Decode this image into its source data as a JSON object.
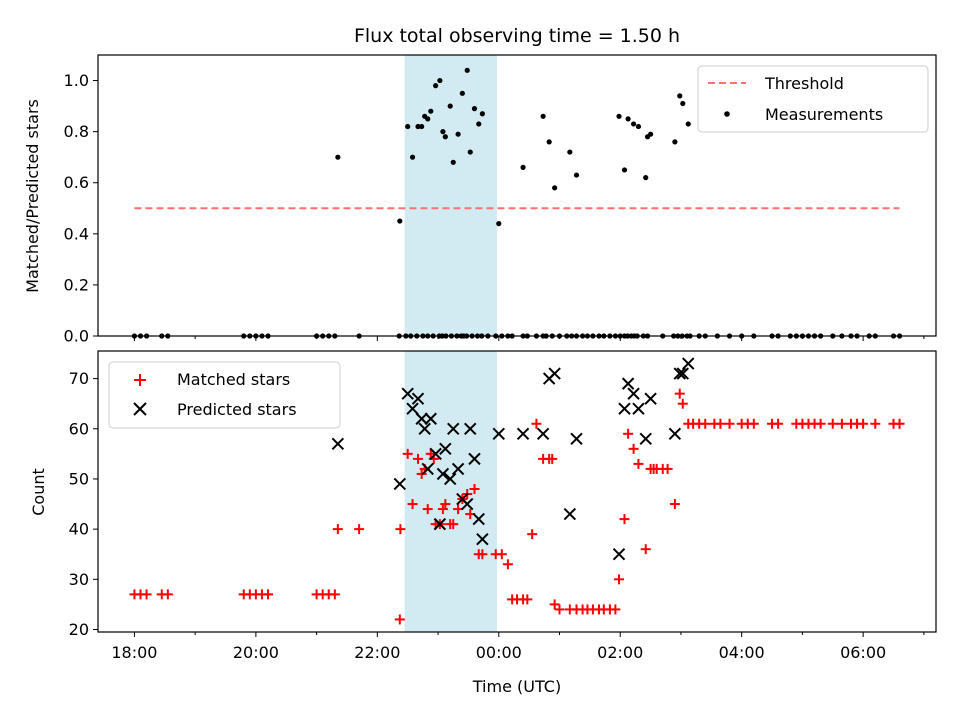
{
  "chart_data": [
    {
      "type": "scatter",
      "title": "Flux total observing time = 1.50 h",
      "ylabel": "Matched/Predicted stars",
      "ylim": [
        0,
        1.1
      ],
      "yticks": [
        0.0,
        0.2,
        0.4,
        0.6,
        0.8,
        1.0
      ],
      "yticklabels": [
        "0.0",
        "0.2",
        "0.4",
        "0.6",
        "0.8",
        "1.0"
      ],
      "highlight_span": {
        "start": 22.45,
        "end": 23.97,
        "color": "#add8e6"
      },
      "legend_position": "top-right",
      "threshold": {
        "name": "Threshold",
        "value": 0.5,
        "x_start": 18.0,
        "x_end": 30.6,
        "color": "#ff7070"
      },
      "series": [
        {
          "name": "Measurements",
          "color": "#000000",
          "x": [
            18.0,
            18.1,
            18.2,
            18.45,
            18.55,
            19.8,
            19.9,
            20.0,
            20.1,
            20.2,
            21.0,
            21.1,
            21.2,
            21.3,
            21.7,
            22.36,
            22.47,
            22.55,
            22.65,
            22.75,
            22.83,
            22.92,
            23.02,
            23.07,
            23.13,
            23.22,
            23.31,
            23.38,
            23.42,
            23.47,
            23.56,
            23.65,
            23.72,
            23.82,
            23.95,
            24.05,
            24.15,
            24.22,
            24.4,
            24.47,
            24.62,
            24.73,
            24.78,
            24.88,
            25.0,
            25.12,
            25.2,
            25.28,
            25.38,
            25.46,
            25.55,
            25.65,
            25.73,
            25.83,
            25.92,
            26.0,
            26.07,
            26.12,
            26.18,
            26.23,
            26.28,
            26.38,
            26.45,
            26.7,
            26.88,
            26.95,
            27.02,
            27.1,
            27.15,
            27.3,
            27.4,
            27.6,
            27.8,
            28.0,
            28.2,
            28.5,
            28.6,
            28.8,
            28.9,
            29.0,
            29.1,
            29.2,
            29.3,
            29.5,
            29.65,
            29.8,
            29.9,
            30.1,
            30.2,
            30.5,
            30.6,
            21.35,
            22.37,
            22.5,
            22.58,
            22.67,
            22.73,
            22.78,
            22.83,
            22.88,
            22.96,
            23.03,
            23.08,
            23.12,
            23.2,
            23.25,
            23.33,
            23.4,
            23.48,
            23.53,
            23.6,
            23.67,
            23.73,
            24.0,
            24.4,
            24.73,
            24.83,
            24.92,
            25.17,
            25.28,
            25.98,
            26.07,
            26.13,
            26.22,
            26.3,
            26.42,
            26.45,
            26.5,
            26.9,
            26.98,
            27.03,
            27.12
          ],
          "y": [
            0,
            0,
            0,
            0,
            0,
            0,
            0,
            0,
            0,
            0,
            0,
            0,
            0,
            0,
            0,
            0,
            0,
            0,
            0,
            0,
            0,
            0,
            0,
            0,
            0,
            0,
            0,
            0,
            0,
            0,
            0,
            0,
            0,
            0,
            0,
            0,
            0,
            0,
            0,
            0,
            0,
            0,
            0,
            0,
            0,
            0,
            0,
            0,
            0,
            0,
            0,
            0,
            0,
            0,
            0,
            0,
            0,
            0,
            0,
            0,
            0,
            0,
            0,
            0,
            0,
            0,
            0,
            0,
            0,
            0,
            0,
            0,
            0,
            0,
            0,
            0,
            0,
            0,
            0,
            0,
            0,
            0,
            0,
            0,
            0,
            0,
            0,
            0,
            0,
            0,
            0,
            0.7,
            0.45,
            0.82,
            0.7,
            0.82,
            0.82,
            0.86,
            0.85,
            0.88,
            0.98,
            1.0,
            0.8,
            0.78,
            0.9,
            0.68,
            0.79,
            0.95,
            1.04,
            0.72,
            0.89,
            0.83,
            0.87,
            0.44,
            0.66,
            0.86,
            0.76,
            0.58,
            0.72,
            0.63,
            0.86,
            0.65,
            0.85,
            0.83,
            0.82,
            0.62,
            0.78,
            0.79,
            0.76,
            0.94,
            0.91,
            0.83
          ]
        }
      ]
    },
    {
      "type": "scatter",
      "xlabel": "Time (UTC)",
      "ylabel": "Count",
      "ylim": [
        19.5,
        75.5
      ],
      "yticks": [
        20,
        30,
        40,
        50,
        60,
        70
      ],
      "yticklabels": [
        "20",
        "30",
        "40",
        "50",
        "60",
        "70"
      ],
      "xlim": [
        17.4,
        31.2
      ],
      "xticks": [
        18,
        20,
        22,
        24,
        26,
        28,
        30
      ],
      "xticklabels": [
        "18:00",
        "20:00",
        "22:00",
        "00:00",
        "02:00",
        "04:00",
        "06:00"
      ],
      "highlight_span": {
        "start": 22.45,
        "end": 23.97,
        "color": "#add8e6"
      },
      "legend_position": "top-left",
      "series": [
        {
          "name": "Matched stars",
          "marker": "plus",
          "color": "#ff0000",
          "x": [
            18.0,
            18.1,
            18.2,
            18.45,
            18.55,
            19.8,
            19.9,
            20.0,
            20.1,
            20.2,
            21.0,
            21.1,
            21.2,
            21.3,
            21.7,
            21.35,
            22.37,
            22.38,
            22.5,
            22.58,
            22.67,
            22.73,
            22.78,
            22.83,
            22.88,
            22.93,
            22.96,
            23.03,
            23.08,
            23.12,
            23.2,
            23.25,
            23.33,
            23.4,
            23.48,
            23.53,
            23.6,
            23.67,
            23.73,
            23.95,
            24.05,
            24.15,
            24.22,
            24.3,
            24.4,
            24.47,
            24.55,
            24.62,
            24.73,
            24.83,
            24.88,
            24.92,
            25.0,
            25.17,
            25.28,
            25.38,
            25.46,
            25.55,
            25.65,
            25.73,
            25.83,
            25.92,
            25.98,
            26.07,
            26.13,
            26.22,
            26.3,
            26.42,
            26.5,
            26.55,
            26.6,
            26.7,
            26.78,
            26.9,
            26.98,
            27.03,
            27.12,
            27.2,
            27.3,
            27.4,
            27.55,
            27.65,
            27.8,
            28.0,
            28.1,
            28.2,
            28.5,
            28.6,
            28.9,
            29.0,
            29.1,
            29.2,
            29.3,
            29.5,
            29.65,
            29.8,
            29.9,
            30.0,
            30.2,
            30.5,
            30.6
          ],
          "y": [
            27,
            27,
            27,
            27,
            27,
            27,
            27,
            27,
            27,
            27,
            27,
            27,
            27,
            27,
            40,
            40,
            22,
            40,
            55,
            45,
            54,
            51,
            52,
            44,
            55,
            54,
            41,
            41,
            44,
            45,
            41,
            41,
            44,
            46,
            47,
            43,
            48,
            35,
            35,
            35,
            35,
            33,
            26,
            26,
            26,
            26,
            39,
            61,
            54,
            54,
            54,
            25,
            24,
            24,
            24,
            24,
            24,
            24,
            24,
            24,
            24,
            24,
            30,
            42,
            59,
            56,
            53,
            36,
            52,
            52,
            52,
            52,
            52,
            45,
            67,
            65,
            61,
            61,
            61,
            61,
            61,
            61,
            61,
            61,
            61,
            61,
            61,
            61,
            61,
            61,
            61,
            61,
            61,
            61,
            61,
            61,
            61,
            61,
            61,
            61,
            61
          ]
        },
        {
          "name": "Predicted stars",
          "marker": "x",
          "color": "#000000",
          "x": [
            21.35,
            22.37,
            22.5,
            22.58,
            22.67,
            22.73,
            22.78,
            22.83,
            22.88,
            22.96,
            23.03,
            23.08,
            23.12,
            23.2,
            23.25,
            23.33,
            23.4,
            23.48,
            23.53,
            23.6,
            23.67,
            23.73,
            24.0,
            24.4,
            24.73,
            24.83,
            24.92,
            25.17,
            25.28,
            25.98,
            26.07,
            26.13,
            26.22,
            26.3,
            26.42,
            26.5,
            26.9,
            26.98,
            27.03,
            27.12
          ],
          "y": [
            57,
            49,
            67,
            64,
            66,
            62,
            60,
            52,
            62,
            55,
            41,
            51,
            56,
            50,
            60,
            52,
            46,
            45,
            60,
            54,
            42,
            38,
            59,
            59,
            59,
            70,
            71,
            43,
            58,
            35,
            64,
            69,
            67,
            64,
            58,
            66,
            59,
            71,
            71,
            73
          ]
        }
      ]
    }
  ]
}
